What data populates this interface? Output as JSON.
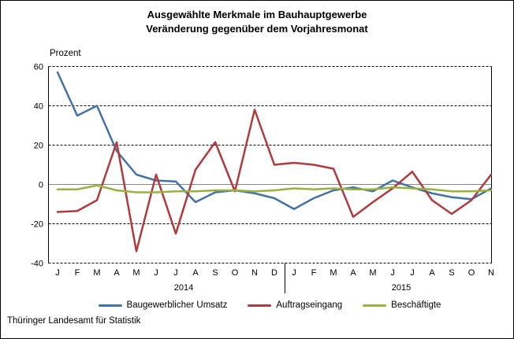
{
  "title": {
    "line1": "Ausgewählte Merkmale im Bauhauptgewerbe",
    "line2": "Veränderung gegenüber dem Vorjahresmonat"
  },
  "y_axis_unit": "Prozent",
  "source": "Thüringer Landesamt für Statistik",
  "chart_data": {
    "type": "line",
    "title": "Ausgewählte Merkmale im Bauhauptgewerbe – Veränderung gegenüber dem Vorjahresmonat",
    "ylabel": "Prozent",
    "ylim": [
      -40,
      60
    ],
    "y_ticks": [
      60,
      40,
      20,
      0,
      -20,
      -40
    ],
    "grid": "horizontal-dashed",
    "zero_line_color": "#888888",
    "axis_color": "#000000",
    "legend_position": "bottom",
    "x_tick_labels": [
      "J",
      "F",
      "M",
      "A",
      "M",
      "J",
      "J",
      "A",
      "S",
      "O",
      "N",
      "D",
      "J",
      "F",
      "M",
      "A",
      "M",
      "J",
      "J",
      "A",
      "S",
      "O",
      "N"
    ],
    "years": [
      {
        "label": "2014",
        "start_index": 0,
        "month_count": 12
      },
      {
        "label": "2015",
        "start_index": 12,
        "month_count": 11
      }
    ],
    "series": [
      {
        "name": "Baugewerblicher Umsatz",
        "color": "#4372A8",
        "values": [
          57,
          35,
          40,
          17,
          5,
          2,
          1.5,
          -9,
          -4,
          -3,
          -4.5,
          -7,
          -12.5,
          -7,
          -3,
          -1.5,
          -3.5,
          2,
          -1.5,
          -4.5,
          -6.5,
          -7.5,
          -2
        ]
      },
      {
        "name": "Auftragseingang",
        "color": "#B03A3C",
        "values": [
          -14,
          -13.5,
          -8,
          21.5,
          -34,
          5,
          -25,
          7.5,
          21.5,
          -3.5,
          38,
          10,
          11,
          10,
          8,
          -16.5,
          -9,
          -2,
          6.5,
          -8,
          -15,
          -8,
          5
        ]
      },
      {
        "name": "Beschäftigte",
        "color": "#97B23F",
        "values": [
          -2.5,
          -2.5,
          -0.5,
          -3,
          -4,
          -4,
          -3.5,
          -3.5,
          -3,
          -3,
          -3.5,
          -3,
          -2,
          -2.5,
          -2,
          -2.5,
          -2.5,
          -1.5,
          -2,
          -2.5,
          -3.5,
          -3.5,
          -3
        ]
      }
    ]
  }
}
